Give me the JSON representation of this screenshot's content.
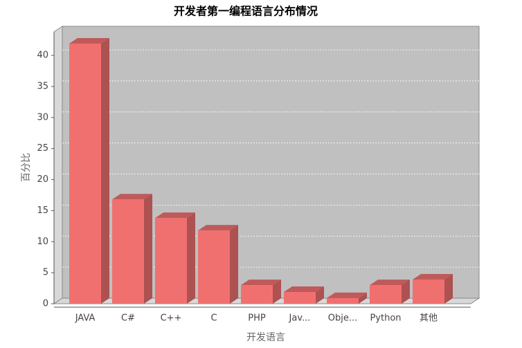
{
  "chart_data": {
    "type": "bar3d",
    "title": "开发者第一编程语言分布情况",
    "x_label": "开发语言",
    "y_label": "百分比",
    "categories": [
      "JAVA",
      "C#",
      "C++",
      "C",
      "PHP",
      "Jav...",
      "Obje...",
      "Python",
      "其他"
    ],
    "values": [
      41.9,
      16.8,
      13.8,
      11.8,
      3.0,
      1.9,
      0.9,
      3.0,
      3.9
    ],
    "color": "#f07070",
    "ylim": [
      0,
      43.8
    ],
    "yticks": [
      0,
      5,
      10,
      15,
      20,
      25,
      30,
      35,
      40
    ],
    "grid": true
  }
}
